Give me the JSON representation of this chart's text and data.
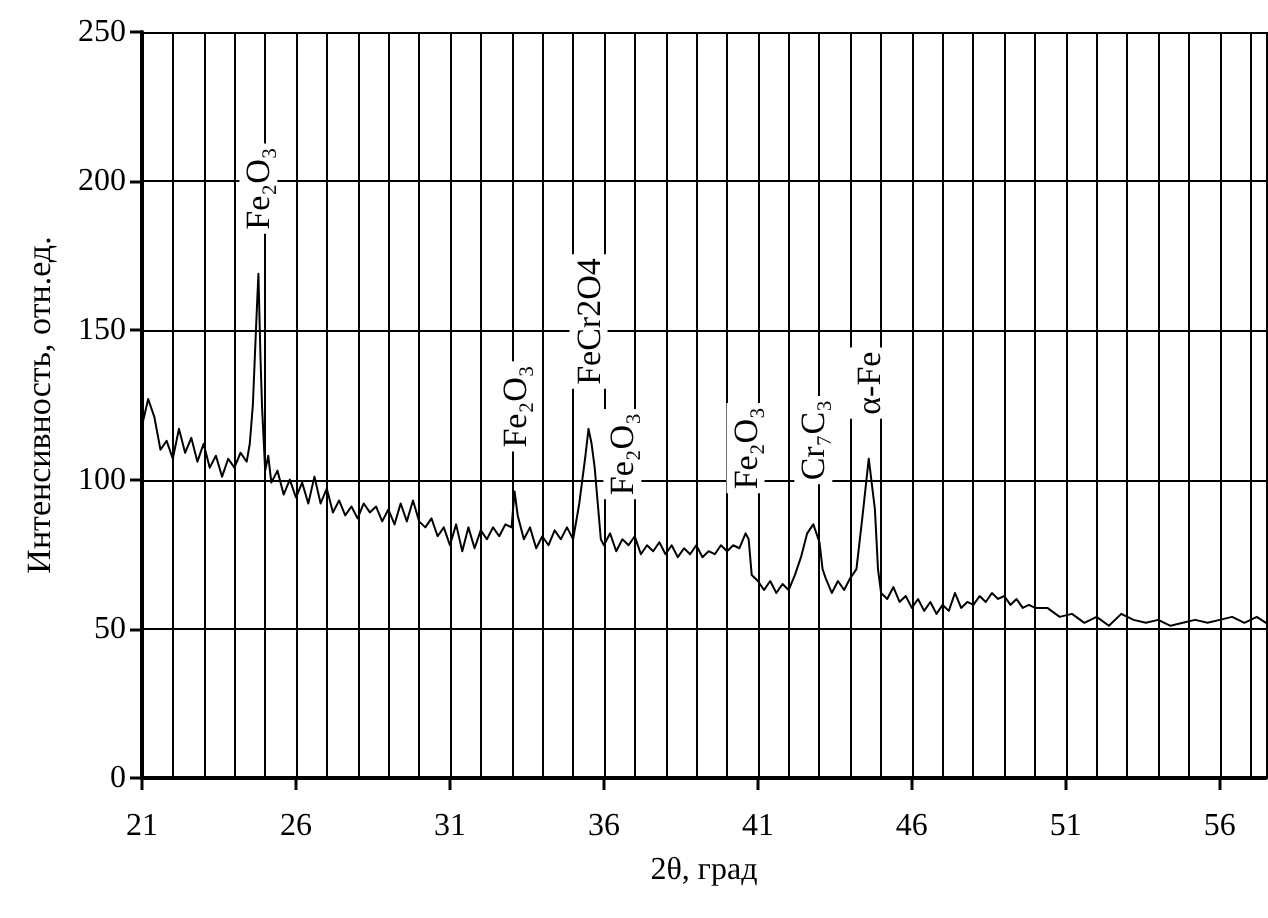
{
  "chart_data": {
    "type": "line",
    "xlabel": "2θ, град",
    "ylabel": "Интенсивность, отн.ед.",
    "x": [
      21.0,
      21.2,
      21.4,
      21.6,
      21.8,
      22.0,
      22.2,
      22.4,
      22.6,
      22.8,
      23.0,
      23.2,
      23.4,
      23.6,
      23.8,
      24.0,
      24.2,
      24.4,
      24.5,
      24.6,
      24.7,
      24.78,
      24.85,
      24.9,
      25.0,
      25.1,
      25.2,
      25.4,
      25.6,
      25.8,
      26.0,
      26.2,
      26.4,
      26.6,
      26.8,
      27.0,
      27.2,
      27.4,
      27.6,
      27.8,
      28.0,
      28.2,
      28.4,
      28.6,
      28.8,
      29.0,
      29.2,
      29.4,
      29.6,
      29.8,
      30.0,
      30.2,
      30.4,
      30.6,
      30.8,
      31.0,
      31.2,
      31.4,
      31.6,
      31.8,
      32.0,
      32.2,
      32.4,
      32.6,
      32.8,
      33.0,
      33.1,
      33.2,
      33.4,
      33.6,
      33.8,
      34.0,
      34.2,
      34.4,
      34.6,
      34.8,
      35.0,
      35.2,
      35.4,
      35.5,
      35.6,
      35.7,
      35.8,
      35.9,
      36.0,
      36.2,
      36.4,
      36.6,
      36.8,
      37.0,
      37.2,
      37.4,
      37.6,
      37.8,
      38.0,
      38.2,
      38.4,
      38.6,
      38.8,
      39.0,
      39.2,
      39.4,
      39.6,
      39.8,
      40.0,
      40.2,
      40.4,
      40.6,
      40.7,
      40.8,
      41.0,
      41.2,
      41.4,
      41.6,
      41.8,
      42.0,
      42.2,
      42.4,
      42.6,
      42.8,
      43.0,
      43.1,
      43.2,
      43.4,
      43.6,
      43.8,
      44.0,
      44.2,
      44.4,
      44.6,
      44.8,
      44.9,
      45.0,
      45.2,
      45.4,
      45.6,
      45.8,
      46.0,
      46.2,
      46.4,
      46.6,
      46.8,
      47.0,
      47.2,
      47.4,
      47.6,
      47.8,
      48.0,
      48.2,
      48.4,
      48.6,
      48.8,
      49.0,
      49.2,
      49.4,
      49.6,
      49.8,
      50.0,
      50.4,
      50.8,
      51.2,
      51.6,
      52.0,
      52.4,
      52.8,
      53.2,
      53.6,
      54.0,
      54.4,
      54.8,
      55.2,
      55.6,
      56.0,
      56.4,
      56.8,
      57.2,
      57.5
    ],
    "series": [
      {
        "color": "#000000",
        "values": [
          118,
          127,
          121,
          110,
          113,
          107,
          117,
          109,
          114,
          106,
          112,
          104,
          108,
          101,
          107,
          104,
          109,
          106,
          112,
          125,
          150,
          169,
          140,
          124,
          103,
          108,
          99,
          103,
          95,
          100,
          94,
          99,
          92,
          101,
          92,
          97,
          89,
          93,
          88,
          91,
          87,
          92,
          89,
          91,
          86,
          90,
          85,
          92,
          86,
          93,
          86,
          84,
          87,
          81,
          84,
          78,
          85,
          76,
          84,
          77,
          83,
          80,
          84,
          81,
          85,
          84,
          96,
          88,
          80,
          84,
          77,
          81,
          78,
          83,
          80,
          84,
          80,
          92,
          108,
          117,
          112,
          104,
          92,
          80,
          78,
          82,
          76,
          80,
          78,
          81,
          75,
          78,
          76,
          79,
          75,
          78,
          74,
          77,
          75,
          78,
          74,
          76,
          75,
          78,
          76,
          78,
          77,
          82,
          80,
          68,
          66,
          63,
          66,
          62,
          65,
          63,
          68,
          74,
          82,
          85,
          79,
          70,
          67,
          62,
          66,
          63,
          67,
          70,
          88,
          107,
          90,
          70,
          62,
          60,
          64,
          59,
          61,
          57,
          60,
          56,
          59,
          55,
          58,
          56,
          62,
          57,
          59,
          58,
          61,
          59,
          62,
          60,
          61,
          58,
          60,
          57,
          58,
          57,
          57,
          54,
          55,
          52,
          54,
          51,
          55,
          53,
          52,
          53,
          51,
          52,
          53,
          52,
          53,
          54,
          52,
          54,
          52
        ]
      }
    ],
    "xlim": [
      21,
      57.5
    ],
    "xticks": [
      21,
      26,
      31,
      36,
      41,
      46,
      51,
      56
    ],
    "ylim": [
      0,
      250
    ],
    "yticks": [
      0,
      50,
      100,
      150,
      200,
      250
    ],
    "grid": true,
    "marker": "none",
    "line_style": "solid",
    "annotations": [
      {
        "text": "Fe₂O₃",
        "x": 24.78,
        "y": 169
      },
      {
        "text": "Fe₂O₃",
        "x": 33.1,
        "y": 96
      },
      {
        "text": "FeCr2O4",
        "x": 35.5,
        "y": 117
      },
      {
        "text": "Fe₂O₃",
        "x": 36.6,
        "y": 80
      },
      {
        "text": "Fe₂O₃",
        "x": 40.6,
        "y": 82
      },
      {
        "text": "Cr₇C₃",
        "x": 42.8,
        "y": 85
      },
      {
        "text": "α-Fe",
        "x": 44.6,
        "y": 107
      }
    ]
  }
}
